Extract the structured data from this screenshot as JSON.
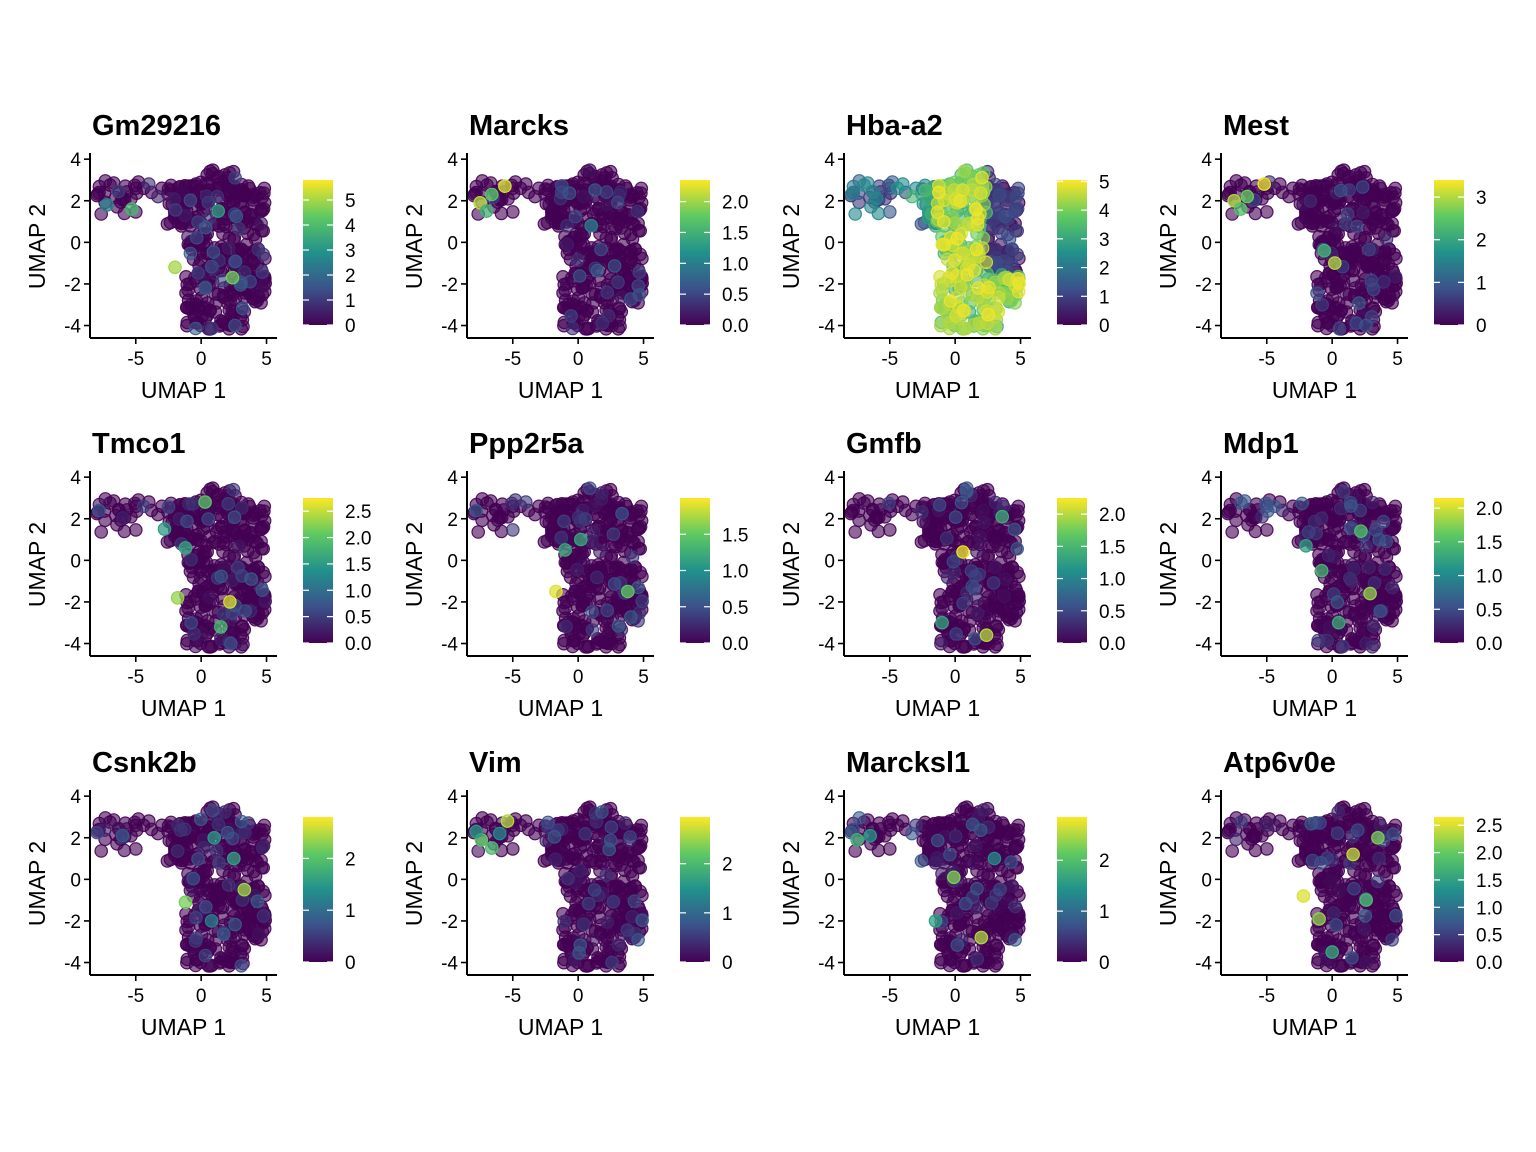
{
  "chart_data": {
    "type": "scatter",
    "layout": "grid 3 rows x 4 columns of UMAP feature plots",
    "xlabel": "UMAP 1",
    "ylabel": "UMAP 2",
    "xlim": [
      -8.5,
      5.8
    ],
    "ylim": [
      -4.6,
      4.2
    ],
    "xticks": [
      -5,
      0,
      5
    ],
    "yticks": [
      4,
      2,
      0,
      -2,
      -4
    ],
    "colormap": [
      "#440154",
      "#3b528b",
      "#21918c",
      "#5ec962",
      "#fde725"
    ],
    "point_alpha": 0.6,
    "legend_placement": "right of each panel (colorbar)",
    "panels": [
      {
        "title": "Gm29216",
        "colorbar_ticks": [
          0,
          1,
          2,
          3,
          4,
          5
        ],
        "colorbar_max": 5.8,
        "hotspots": [
          {
            "x": -2.0,
            "y": -1.2,
            "v": 5.0
          },
          {
            "x": 2.4,
            "y": -1.7,
            "v": 4.5
          },
          {
            "x": 1.3,
            "y": 1.5,
            "v": 3.2
          },
          {
            "x": -5.3,
            "y": 1.6,
            "v": 3.8
          },
          {
            "x": -7.2,
            "y": 1.8,
            "v": 2.5
          }
        ]
      },
      {
        "title": "Marcks",
        "colorbar_ticks": [
          0.0,
          0.5,
          1.0,
          1.5,
          2.0
        ],
        "colorbar_max": 2.35,
        "hotspots": [
          {
            "x": -7.5,
            "y": 1.9,
            "v": 2.1
          },
          {
            "x": -6.6,
            "y": 2.3,
            "v": 1.7
          },
          {
            "x": -5.6,
            "y": 2.7,
            "v": 2.2
          },
          {
            "x": -7.0,
            "y": 1.5,
            "v": 1.5
          },
          {
            "x": 1.0,
            "y": 0.8,
            "v": 1.0
          }
        ]
      },
      {
        "title": "Hba-a2",
        "colorbar_ticks": [
          0,
          1,
          2,
          3,
          4,
          5
        ],
        "colorbar_max": 5.05,
        "hotspots": []
      },
      {
        "title": "Mest",
        "colorbar_ticks": [
          0,
          1,
          2,
          3
        ],
        "colorbar_max": 3.4,
        "hotspots": [
          {
            "x": -7.5,
            "y": 2.0,
            "v": 3.0
          },
          {
            "x": -6.5,
            "y": 2.2,
            "v": 2.6
          },
          {
            "x": -5.2,
            "y": 2.8,
            "v": 3.3
          },
          {
            "x": -7.0,
            "y": 1.6,
            "v": 2.4
          },
          {
            "x": -0.6,
            "y": -0.4,
            "v": 2.2
          },
          {
            "x": 0.2,
            "y": -1.0,
            "v": 3.0
          }
        ]
      },
      {
        "title": "Tmco1",
        "colorbar_ticks": [
          0.0,
          0.5,
          1.0,
          1.5,
          2.0,
          2.5
        ],
        "colorbar_max": 2.75,
        "hotspots": [
          {
            "x": -1.8,
            "y": -1.8,
            "v": 2.3
          },
          {
            "x": 2.2,
            "y": -2.0,
            "v": 2.6
          },
          {
            "x": 0.3,
            "y": 2.8,
            "v": 2.0
          },
          {
            "x": -1.2,
            "y": 0.6,
            "v": 1.6
          },
          {
            "x": 1.5,
            "y": -3.2,
            "v": 1.8
          },
          {
            "x": -2.8,
            "y": 1.5,
            "v": 1.5
          }
        ]
      },
      {
        "title": "Ppp2r5a",
        "colorbar_ticks": [
          0.0,
          0.5,
          1.0,
          1.5
        ],
        "colorbar_max": 2.0,
        "hotspots": [
          {
            "x": -1.7,
            "y": -1.5,
            "v": 1.9
          },
          {
            "x": 3.8,
            "y": -1.5,
            "v": 1.5
          },
          {
            "x": 0.2,
            "y": 1.0,
            "v": 1.2
          },
          {
            "x": -1.0,
            "y": 0.5,
            "v": 1.2
          }
        ]
      },
      {
        "title": "Gmfb",
        "colorbar_ticks": [
          0.0,
          0.5,
          1.0,
          1.5,
          2.0
        ],
        "colorbar_max": 2.25,
        "hotspots": [
          {
            "x": 0.6,
            "y": 0.4,
            "v": 2.2
          },
          {
            "x": 2.4,
            "y": -3.6,
            "v": 2.0
          },
          {
            "x": 3.6,
            "y": 2.1,
            "v": 1.4
          },
          {
            "x": -1.0,
            "y": -3.0,
            "v": 1.3
          }
        ]
      },
      {
        "title": "Mdp1",
        "colorbar_ticks": [
          0.0,
          0.5,
          1.0,
          1.5,
          2.0
        ],
        "colorbar_max": 2.15,
        "hotspots": [
          {
            "x": 2.9,
            "y": -1.6,
            "v": 1.8
          },
          {
            "x": -0.8,
            "y": -0.5,
            "v": 1.4
          },
          {
            "x": 0.5,
            "y": -3.0,
            "v": 1.3
          },
          {
            "x": 2.2,
            "y": 1.4,
            "v": 1.5
          },
          {
            "x": -2.0,
            "y": 0.7,
            "v": 1.2
          }
        ]
      },
      {
        "title": "Csnk2b",
        "colorbar_ticks": [
          0,
          1,
          2
        ],
        "colorbar_max": 2.8,
        "hotspots": [
          {
            "x": 3.3,
            "y": -0.5,
            "v": 2.4
          },
          {
            "x": -1.2,
            "y": -1.1,
            "v": 2.2
          },
          {
            "x": 1.0,
            "y": 2.0,
            "v": 1.5
          },
          {
            "x": 2.5,
            "y": 1.0,
            "v": 1.6
          },
          {
            "x": 0.8,
            "y": -2.0,
            "v": 1.2
          }
        ]
      },
      {
        "title": "Vim",
        "colorbar_ticks": [
          0,
          1,
          2
        ],
        "colorbar_max": 2.95,
        "hotspots": [
          {
            "x": -7.4,
            "y": 1.9,
            "v": 2.2
          },
          {
            "x": -6.6,
            "y": 1.5,
            "v": 2.0
          },
          {
            "x": -5.4,
            "y": 2.8,
            "v": 2.6
          },
          {
            "x": -7.8,
            "y": 2.3,
            "v": 1.6
          },
          {
            "x": -6.0,
            "y": 2.2,
            "v": 1.4
          }
        ]
      },
      {
        "title": "Marcksl1",
        "colorbar_ticks": [
          0,
          1,
          2
        ],
        "colorbar_max": 2.85,
        "hotspots": [
          {
            "x": -7.5,
            "y": 1.9,
            "v": 1.8
          },
          {
            "x": -6.5,
            "y": 2.1,
            "v": 1.5
          },
          {
            "x": 2.0,
            "y": -2.8,
            "v": 2.5
          },
          {
            "x": -0.1,
            "y": 0.1,
            "v": 2.3
          },
          {
            "x": -1.5,
            "y": -2.0,
            "v": 1.6
          },
          {
            "x": 3.0,
            "y": 1.0,
            "v": 1.4
          }
        ]
      },
      {
        "title": "Atp6v0e",
        "colorbar_ticks": [
          0.0,
          0.5,
          1.0,
          1.5,
          2.0,
          2.5
        ],
        "colorbar_max": 2.65,
        "hotspots": [
          {
            "x": -2.2,
            "y": -0.8,
            "v": 2.5
          },
          {
            "x": 1.6,
            "y": 1.2,
            "v": 2.4
          },
          {
            "x": -1.0,
            "y": -1.9,
            "v": 2.2
          },
          {
            "x": 3.5,
            "y": 2.0,
            "v": 2.1
          },
          {
            "x": 2.6,
            "y": -1.0,
            "v": 1.8
          },
          {
            "x": 0.0,
            "y": -3.5,
            "v": 1.6
          }
        ]
      }
    ]
  }
}
